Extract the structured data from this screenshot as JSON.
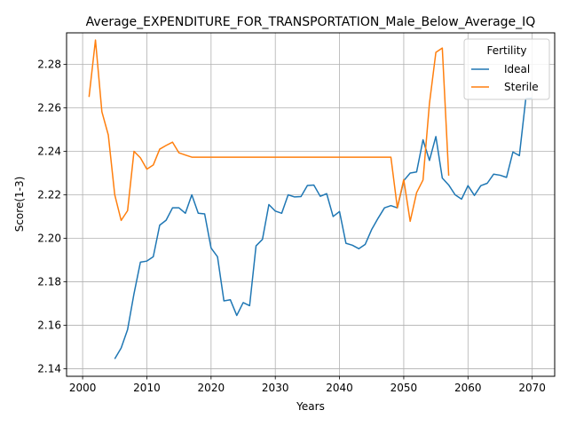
{
  "chart_data": {
    "type": "line",
    "title": "Average_EXPENDITURE_FOR_TRANSPORTATION_Male_Below_Average_IQ",
    "xlabel": "Years",
    "ylabel": "Score(1-3)",
    "xlim": [
      1997.5,
      2073.5
    ],
    "ylim": [
      2.1365,
      2.2945
    ],
    "xticks": [
      2000,
      2010,
      2020,
      2030,
      2040,
      2050,
      2060,
      2070
    ],
    "yticks": [
      2.14,
      2.16,
      2.18,
      2.2,
      2.22,
      2.24,
      2.26,
      2.28
    ],
    "grid": true,
    "legend": {
      "title": "Fertility",
      "placement": "top-right"
    },
    "series": [
      {
        "name": "Ideal",
        "color": "#1f77b4",
        "x": [
          2005,
          2006,
          2007,
          2008,
          2009,
          2010,
          2011,
          2012,
          2013,
          2014,
          2015,
          2016,
          2017,
          2018,
          2019,
          2020,
          2021,
          2022,
          2023,
          2024,
          2025,
          2026,
          2027,
          2028,
          2029,
          2030,
          2031,
          2032,
          2033,
          2034,
          2035,
          2036,
          2037,
          2038,
          2039,
          2040,
          2041,
          2042,
          2043,
          2044,
          2045,
          2046,
          2047,
          2048,
          2049,
          2050,
          2051,
          2052,
          2053,
          2054,
          2055,
          2056,
          2057,
          2058,
          2059,
          2060,
          2061,
          2062,
          2063,
          2064,
          2065,
          2066,
          2067,
          2068,
          2069,
          2070
        ],
        "values": [
          2.1445,
          2.1495,
          2.158,
          2.1745,
          2.189,
          2.1895,
          2.1915,
          2.206,
          2.2083,
          2.214,
          2.214,
          2.2115,
          2.22,
          2.2115,
          2.2112,
          2.1955,
          2.1915,
          2.1712,
          2.1717,
          2.1645,
          2.1704,
          2.169,
          2.1965,
          2.1995,
          2.2155,
          2.2125,
          2.2115,
          2.22,
          2.219,
          2.2192,
          2.2243,
          2.2245,
          2.2193,
          2.2205,
          2.21,
          2.2123,
          2.1977,
          2.1968,
          2.1952,
          2.1972,
          2.204,
          2.2092,
          2.214,
          2.215,
          2.214,
          2.2265,
          2.23,
          2.2305,
          2.2453,
          2.2358,
          2.2468,
          2.2277,
          2.2245,
          2.22,
          2.218,
          2.2242,
          2.2197,
          2.2242,
          2.2253,
          2.2295,
          2.229,
          2.228,
          2.2397,
          2.238,
          2.2642,
          2.2645
        ]
      },
      {
        "name": "Sterile",
        "color": "#ff7f0e",
        "x": [
          2001,
          2002,
          2003,
          2004,
          2005,
          2006,
          2007,
          2008,
          2009,
          2010,
          2011,
          2012,
          2013,
          2014,
          2015,
          2016,
          2017,
          2018,
          2019,
          2020,
          2021,
          2022,
          2023,
          2024,
          2025,
          2026,
          2027,
          2028,
          2029,
          2030,
          2031,
          2032,
          2033,
          2034,
          2035,
          2036,
          2037,
          2038,
          2039,
          2040,
          2041,
          2042,
          2043,
          2044,
          2045,
          2046,
          2047,
          2048,
          2049,
          2050,
          2051,
          2052,
          2053,
          2054,
          2055,
          2056,
          2057
        ],
        "values": [
          2.265,
          2.2912,
          2.2582,
          2.2475,
          2.22,
          2.2082,
          2.2127,
          2.24,
          2.237,
          2.2318,
          2.2337,
          2.241,
          2.2427,
          2.2442,
          2.2393,
          2.2383,
          2.2373,
          2.2373,
          2.2373,
          2.2373,
          2.2373,
          2.2373,
          2.2373,
          2.2373,
          2.2373,
          2.2373,
          2.2373,
          2.2373,
          2.2373,
          2.2373,
          2.2373,
          2.2373,
          2.2373,
          2.2373,
          2.2373,
          2.2373,
          2.2373,
          2.2373,
          2.2373,
          2.2373,
          2.2373,
          2.2373,
          2.2373,
          2.2373,
          2.2373,
          2.2373,
          2.2373,
          2.2373,
          2.214,
          2.227,
          2.2078,
          2.221,
          2.2268,
          2.262,
          2.2855,
          2.2875,
          2.2288
        ]
      }
    ]
  }
}
